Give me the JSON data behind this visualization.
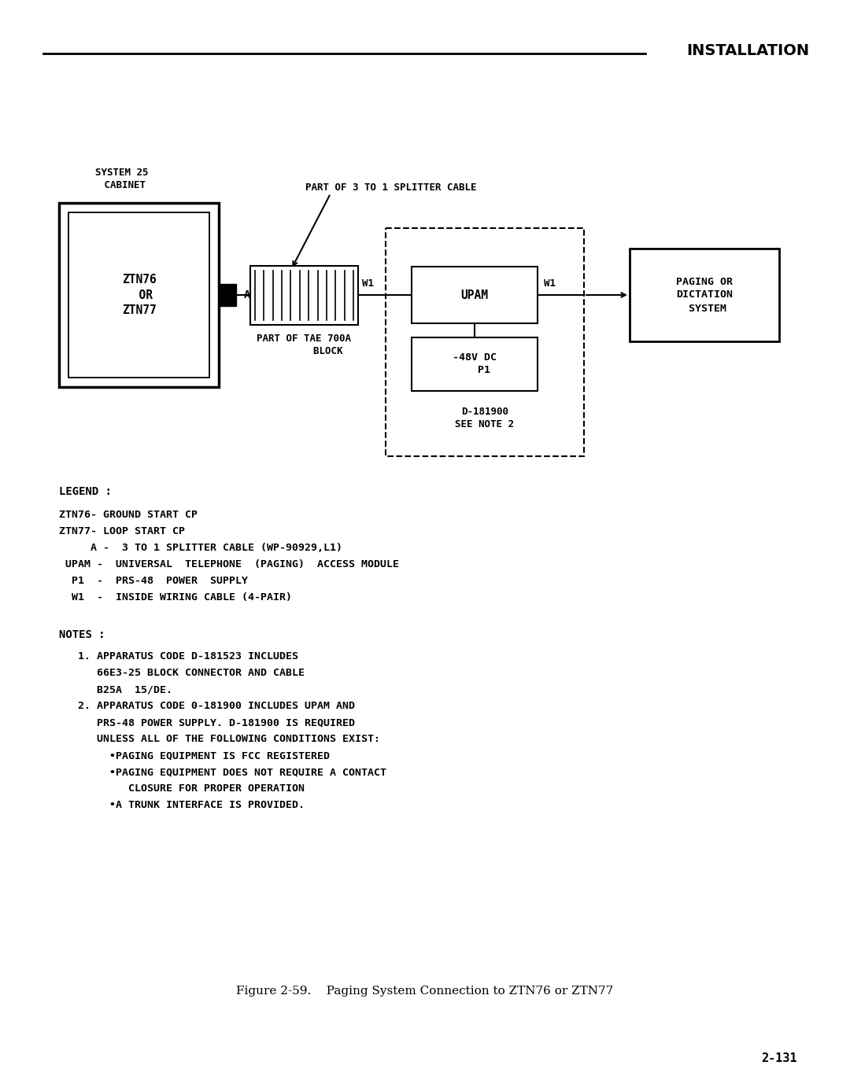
{
  "title_header": "INSTALLATION",
  "figure_caption": "Figure 2-59.    Paging System Connection to ZTN76 or ZTN77",
  "page_number": "2-131",
  "bg_color": "#ffffff",
  "legend_label": "LEGEND :",
  "legend_lines": [
    "ZTN76- GROUND START CP",
    "ZTN77- LOOP START CP",
    "     A -  3 TO 1 SPLITTER CABLE (WP-90929,L1)",
    " UPAM -  UNIVERSAL  TELEPHONE  (PAGING)  ACCESS MODULE",
    "  P1  -  PRS-48  POWER  SUPPLY",
    "  W1  -  INSIDE WIRING CABLE (4-PAIR)"
  ],
  "notes_title": "NOTES :",
  "notes_lines": [
    "   1. APPARATUS CODE D-181523 INCLUDES",
    "      66E3-25 BLOCK CONNECTOR AND CABLE",
    "      B25A  15/DE.",
    "   2. APPARATUS CODE 0-181900 INCLUDES UPAM AND",
    "      PRS-48 POWER SUPPLY. D-181900 IS REQUIRED",
    "      UNLESS ALL OF THE FOLLOWING CONDITIONS EXIST:",
    "        •PAGING EQUIPMENT IS FCC REGISTERED",
    "        •PAGING EQUIPMENT DOES NOT REQUIRE A CONTACT",
    "           CLOSURE FOR PROPER OPERATION",
    "        •A TRUNK INTERFACE IS PROVIDED."
  ],
  "system25_label": "SYSTEM 25\n CABINET",
  "ztn_label": "ZTN76\n  OR\nZTN77",
  "tae_label": "PART OF TAE 700A\n        BLOCK",
  "splitter_label": "PART OF 3 TO 1 SPLITTER CABLE",
  "upam_label": "UPAM",
  "p1_label": "-48V DC\n   P1",
  "paging_label": "PAGING OR\nDICTATION\n SYSTEM",
  "d181900_label": "D-181900\nSEE NOTE 2",
  "w1_label": "W1",
  "a_label": "A"
}
